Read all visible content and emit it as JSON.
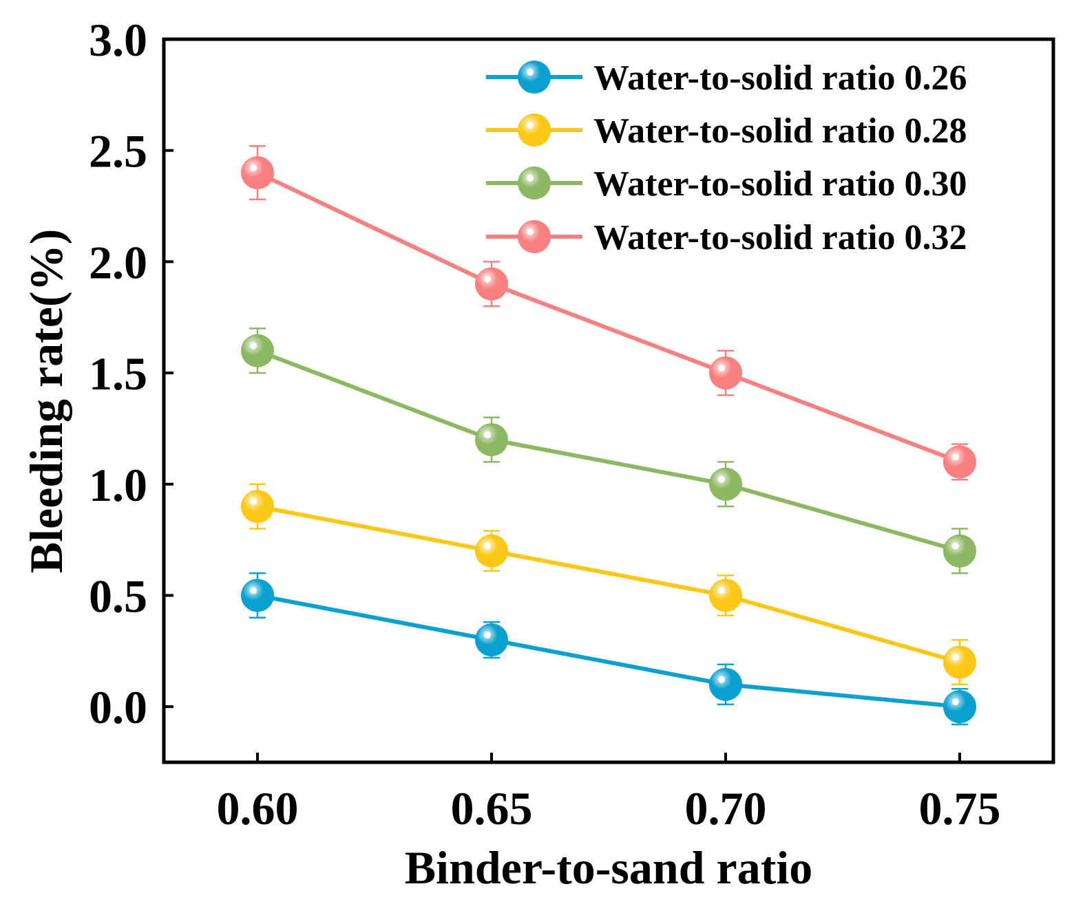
{
  "chart_data": {
    "type": "line",
    "title": "",
    "xlabel": "Binder-to-sand ratio",
    "ylabel": "Bleeding rate(%)",
    "x": [
      0.6,
      0.65,
      0.7,
      0.75
    ],
    "x_tick_labels": [
      "0.60",
      "0.65",
      "0.70",
      "0.75"
    ],
    "xlim": [
      0.58,
      0.77
    ],
    "ylim": [
      -0.25,
      3.0
    ],
    "y_ticks": [
      0.0,
      0.5,
      1.0,
      1.5,
      2.0,
      2.5,
      3.0
    ],
    "y_tick_labels": [
      "0.0",
      "0.5",
      "1.0",
      "1.5",
      "2.0",
      "2.5",
      "3.0"
    ],
    "grid": false,
    "legend_position": "top-right",
    "series": [
      {
        "name": "Water-to-solid ratio 0.26",
        "color": "#0aa0d0",
        "values": [
          0.5,
          0.3,
          0.1,
          0.0
        ],
        "errors": [
          0.1,
          0.08,
          0.09,
          0.08
        ]
      },
      {
        "name": "Water-to-solid ratio 0.28",
        "color": "#fcc817",
        "values": [
          0.9,
          0.7,
          0.5,
          0.2
        ],
        "errors": [
          0.1,
          0.09,
          0.09,
          0.1
        ]
      },
      {
        "name": "Water-to-solid ratio 0.30",
        "color": "#8db862",
        "values": [
          1.6,
          1.2,
          1.0,
          0.7
        ],
        "errors": [
          0.1,
          0.1,
          0.1,
          0.1
        ]
      },
      {
        "name": "Water-to-solid ratio 0.32",
        "color": "#f98080",
        "values": [
          2.4,
          1.9,
          1.5,
          1.1
        ],
        "errors": [
          0.12,
          0.1,
          0.1,
          0.08
        ]
      }
    ]
  }
}
